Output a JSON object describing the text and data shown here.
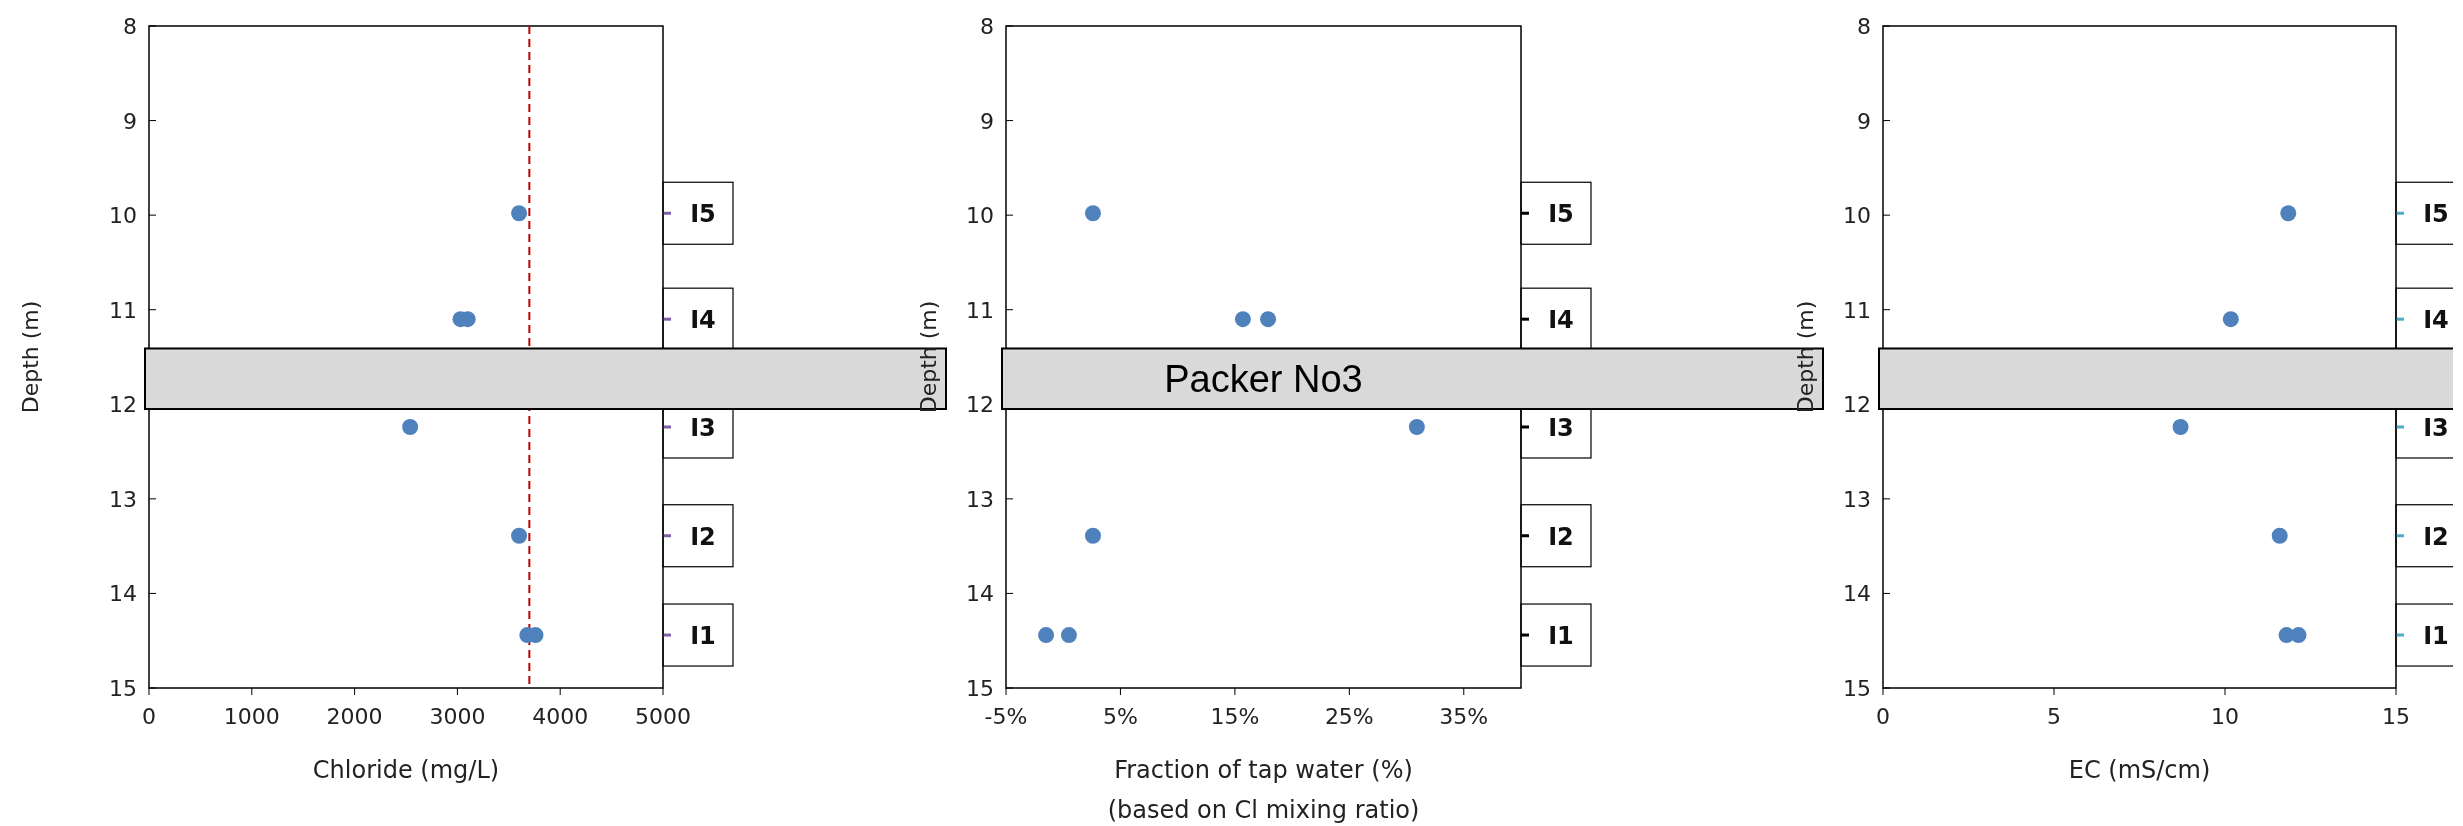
{
  "chart_data": [
    {
      "type": "scatter",
      "xlabel": "Chloride (mg/L)",
      "ylabel": "Depth (m)",
      "xlim": [
        0,
        5000
      ],
      "xticks": [
        0,
        1000,
        2000,
        3000,
        4000,
        5000
      ],
      "ylim": [
        15,
        8
      ],
      "yticks": [
        8,
        9,
        10,
        11,
        12,
        13,
        14,
        15
      ],
      "marker": "circle",
      "series": [
        {
          "color": "#4f81bd",
          "x": [
            3600,
            3030,
            3100,
            2540,
            3600,
            3680,
            3760
          ],
          "values": [
            9.98,
            11.1,
            11.1,
            12.24,
            13.39,
            14.44,
            14.44
          ]
        }
      ],
      "ref_lines": [
        {
          "axis": "x",
          "value": 3700,
          "color": "#c00000",
          "line_style": "dashed"
        },
        {
          "axis": "y",
          "value": 9.98,
          "label": "I5",
          "color": "#7f60a8"
        },
        {
          "axis": "y",
          "value": 11.1,
          "label": "I4",
          "color": "#7f60a8"
        },
        {
          "axis": "y",
          "value": 12.24,
          "label": "I3",
          "color": "#7f60a8"
        },
        {
          "axis": "y",
          "value": 13.39,
          "label": "I2",
          "color": "#7f60a8"
        },
        {
          "axis": "y",
          "value": 14.44,
          "label": "I1",
          "color": "#7f60a8"
        }
      ],
      "bands": [
        {
          "axis": "y",
          "from": 11.41,
          "to": 12.05,
          "color": "#d9d9d9"
        }
      ]
    },
    {
      "type": "scatter",
      "xlabel": "Fraction of tap water (%)",
      "subtitle": "(based on Cl mixing ratio)",
      "ylabel": "Depth (m)",
      "xlim": [
        -5,
        40
      ],
      "xticks": [
        {
          "value": -5,
          "label": "-5%"
        },
        {
          "value": 5,
          "label": "5%"
        },
        {
          "value": 15,
          "label": "15%"
        },
        {
          "value": 25,
          "label": "25%"
        },
        {
          "value": 35,
          "label": "35%"
        }
      ],
      "ylim": [
        15,
        8
      ],
      "yticks": [
        8,
        9,
        10,
        11,
        12,
        13,
        14,
        15
      ],
      "marker": "circle",
      "series": [
        {
          "color": "#4f81bd",
          "x": [
            2.6,
            15.7,
            17.9,
            30.9,
            2.6,
            -1.5,
            0.5
          ],
          "values": [
            9.98,
            11.1,
            11.1,
            12.24,
            13.39,
            14.44,
            14.44
          ]
        }
      ],
      "ref_lines": [
        {
          "axis": "y",
          "value": 9.98,
          "label": "I5",
          "color": "#000000"
        },
        {
          "axis": "y",
          "value": 11.1,
          "label": "I4",
          "color": "#000000"
        },
        {
          "axis": "y",
          "value": 12.24,
          "label": "I3",
          "color": "#000000"
        },
        {
          "axis": "y",
          "value": 13.39,
          "label": "I2",
          "color": "#000000"
        },
        {
          "axis": "y",
          "value": 14.44,
          "label": "I1",
          "color": "#000000"
        }
      ],
      "bands": [
        {
          "axis": "y",
          "from": 11.41,
          "to": 12.05,
          "color": "#d9d9d9",
          "label": "Packer No3"
        }
      ]
    },
    {
      "type": "scatter",
      "xlabel": "EC (mS/cm)",
      "ylabel": "Depth (m)",
      "xlim": [
        0,
        15
      ],
      "xticks": [
        0,
        5,
        10,
        15
      ],
      "ylim": [
        15,
        8
      ],
      "yticks": [
        8,
        9,
        10,
        11,
        12,
        13,
        14,
        15
      ],
      "marker": "circle",
      "series": [
        {
          "color": "#4f81bd",
          "x": [
            11.85,
            10.17,
            8.7,
            11.6,
            11.8,
            12.15
          ],
          "values": [
            9.98,
            11.1,
            12.24,
            13.39,
            14.44,
            14.44
          ]
        }
      ],
      "ref_lines": [
        {
          "axis": "y",
          "value": 9.98,
          "label": "I5",
          "color": "#4bacc6"
        },
        {
          "axis": "y",
          "value": 11.1,
          "label": "I4",
          "color": "#4bacc6"
        },
        {
          "axis": "y",
          "value": 12.24,
          "label": "I3",
          "color": "#4bacc6"
        },
        {
          "axis": "y",
          "value": 13.39,
          "label": "I2",
          "color": "#4bacc6"
        },
        {
          "axis": "y",
          "value": 14.44,
          "label": "I1",
          "color": "#4bacc6"
        }
      ],
      "bands": [
        {
          "axis": "y",
          "from": 11.41,
          "to": 12.05,
          "color": "#d9d9d9"
        }
      ]
    }
  ]
}
